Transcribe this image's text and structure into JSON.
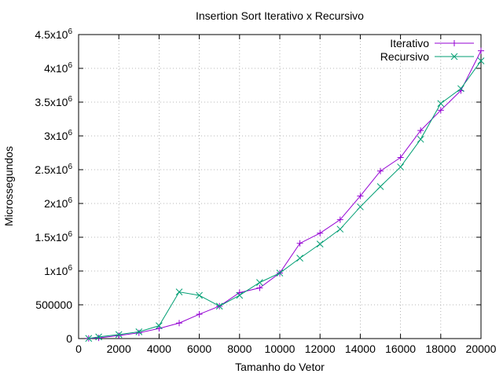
{
  "chart_data": {
    "type": "line",
    "title": "Insertion Sort Iterativo x Recursivo",
    "xlabel": "Tamanho do Vetor",
    "ylabel": "Microssegundos",
    "xlim": [
      0,
      20000
    ],
    "ylim": [
      0,
      4500000
    ],
    "grid": true,
    "legend_position": "top-right",
    "x_ticks": [
      "0",
      "2000",
      "4000",
      "6000",
      "8000",
      "10000",
      "12000",
      "14000",
      "16000",
      "18000",
      "20000"
    ],
    "y_ticks": [
      {
        "value": 0,
        "mantissa": "0",
        "exp": ""
      },
      {
        "value": 500000,
        "mantissa": "500000",
        "exp": ""
      },
      {
        "value": 1000000,
        "mantissa": "1x10",
        "exp": "6"
      },
      {
        "value": 1500000,
        "mantissa": "1.5x10",
        "exp": "6"
      },
      {
        "value": 2000000,
        "mantissa": "2x10",
        "exp": "6"
      },
      {
        "value": 2500000,
        "mantissa": "2.5x10",
        "exp": "6"
      },
      {
        "value": 3000000,
        "mantissa": "3x10",
        "exp": "6"
      },
      {
        "value": 3500000,
        "mantissa": "3.5x10",
        "exp": "6"
      },
      {
        "value": 4000000,
        "mantissa": "4x10",
        "exp": "6"
      },
      {
        "value": 4500000,
        "mantissa": "4.5x10",
        "exp": "6"
      }
    ],
    "x": [
      500,
      1000,
      2000,
      3000,
      4000,
      5000,
      6000,
      7000,
      8000,
      9000,
      10000,
      11000,
      12000,
      13000,
      14000,
      15000,
      16000,
      17000,
      18000,
      19000,
      20000
    ],
    "series": [
      {
        "name": "Iterativo",
        "color": "#9400d3",
        "marker": "plus",
        "values": [
          3000,
          10000,
          45000,
          85000,
          150000,
          230000,
          360000,
          480000,
          680000,
          750000,
          970000,
          1410000,
          1560000,
          1760000,
          2110000,
          2480000,
          2680000,
          3080000,
          3380000,
          3670000,
          4260000
        ]
      },
      {
        "name": "Recursivo",
        "color": "#009e73",
        "marker": "cross",
        "values": [
          3000,
          25000,
          60000,
          100000,
          190000,
          690000,
          640000,
          480000,
          640000,
          830000,
          970000,
          1190000,
          1400000,
          1620000,
          1950000,
          2250000,
          2540000,
          2950000,
          3480000,
          3700000,
          4110000
        ]
      }
    ]
  }
}
